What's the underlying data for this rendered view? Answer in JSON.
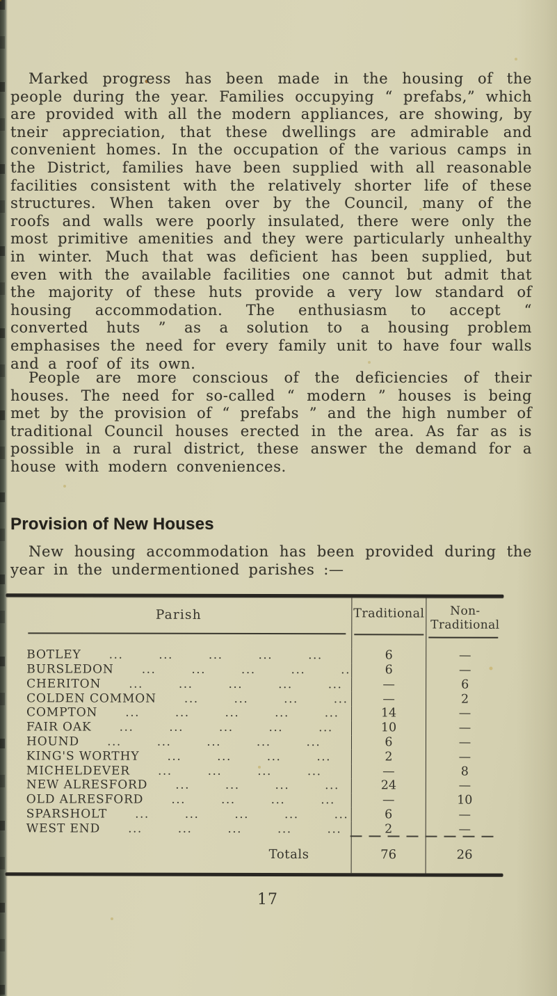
{
  "page": {
    "page_number": "17"
  },
  "colors": {
    "paper": "#d8d4b5",
    "ink": "#36342c",
    "rule": "#292722",
    "left_edge": "#555a4c"
  },
  "body": {
    "p1": "Marked progress has been made in the housing of the people during the year.  Families occupying “ prefabs,” which are provided with all the modern appliances, are showing, by tneir appreciation, that these dwellings are admirable and convenient homes.  In the occupation of the various camps in the District, families have been supplied with all reasonable facilities consistent with the relatively shorter life of these structures.  When taken over by the Council, many of the roofs and walls were poorly insulated, there were only the most primitive amenities and they were particularly unhealthy in winter.  Much that was deficient has been supplied, but even with the available facilities one cannot but admit that the majority of these huts provide a very low standard of housing accommodation.  The enthusiasm to accept “ converted huts ” as a solution to a housing problem emphasises the need for every family unit to have four walls and a roof of its own.",
    "p2": "People are more conscious of the deficiencies of their houses.  The need for so-called “ modern ” houses is being met by the provision of “ prefabs ” and the high number of traditional Council houses erected in the area.  As far as is possible in a rural district, these answer the demand for a house with modern conveniences.",
    "section_heading": "Provision of New Houses",
    "p3": "New housing accommodation has been provided during the year in the undermentioned parishes :—"
  },
  "table": {
    "headers": {
      "parish": "Parish",
      "traditional": "Traditional",
      "non_traditional_line1": "Non-",
      "non_traditional_line2": "Traditional"
    },
    "rows": [
      {
        "parish": "BOTLEY",
        "leaders": "... ... ... ... ...",
        "traditional": "6",
        "non_traditional": "—"
      },
      {
        "parish": "BURSLEDON",
        "leaders": "... ... ... ... ...",
        "traditional": "6",
        "non_traditional": "—"
      },
      {
        "parish": "CHERITON",
        "leaders": "... ... ... ... ...",
        "traditional": "—",
        "non_traditional": "6"
      },
      {
        "parish": "COLDEN COMMON",
        "leaders": "... ... ... ...",
        "traditional": "—",
        "non_traditional": "2"
      },
      {
        "parish": "COMPTON",
        "leaders": "... ... ... ... ...",
        "traditional": "14",
        "non_traditional": "—"
      },
      {
        "parish": "FAIR OAK",
        "leaders": "... ... ... ... ...",
        "traditional": "10",
        "non_traditional": "—"
      },
      {
        "parish": "HOUND",
        "leaders": "... ... ... ... ... ...",
        "traditional": "6",
        "non_traditional": "—"
      },
      {
        "parish": "KING'S WORTHY",
        "leaders": "... ... ... ...",
        "traditional": "2",
        "non_traditional": "—"
      },
      {
        "parish": "MICHELDEVER",
        "leaders": "... ... ... ...",
        "traditional": "—",
        "non_traditional": "8"
      },
      {
        "parish": "NEW ALRESFORD",
        "leaders": "... ... ... ...",
        "traditional": "24",
        "non_traditional": "—"
      },
      {
        "parish": "OLD ALRESFORD",
        "leaders": "... ... ... ...",
        "traditional": "—",
        "non_traditional": "10"
      },
      {
        "parish": "SPARSHOLT",
        "leaders": "... ... ... ... ...",
        "traditional": "6",
        "non_traditional": "—"
      },
      {
        "parish": "WEST END",
        "leaders": "... ... ... ... ...",
        "traditional": "2",
        "non_traditional": "—"
      }
    ],
    "totals": {
      "label": "Totals",
      "traditional": "76",
      "non_traditional": "26"
    }
  }
}
